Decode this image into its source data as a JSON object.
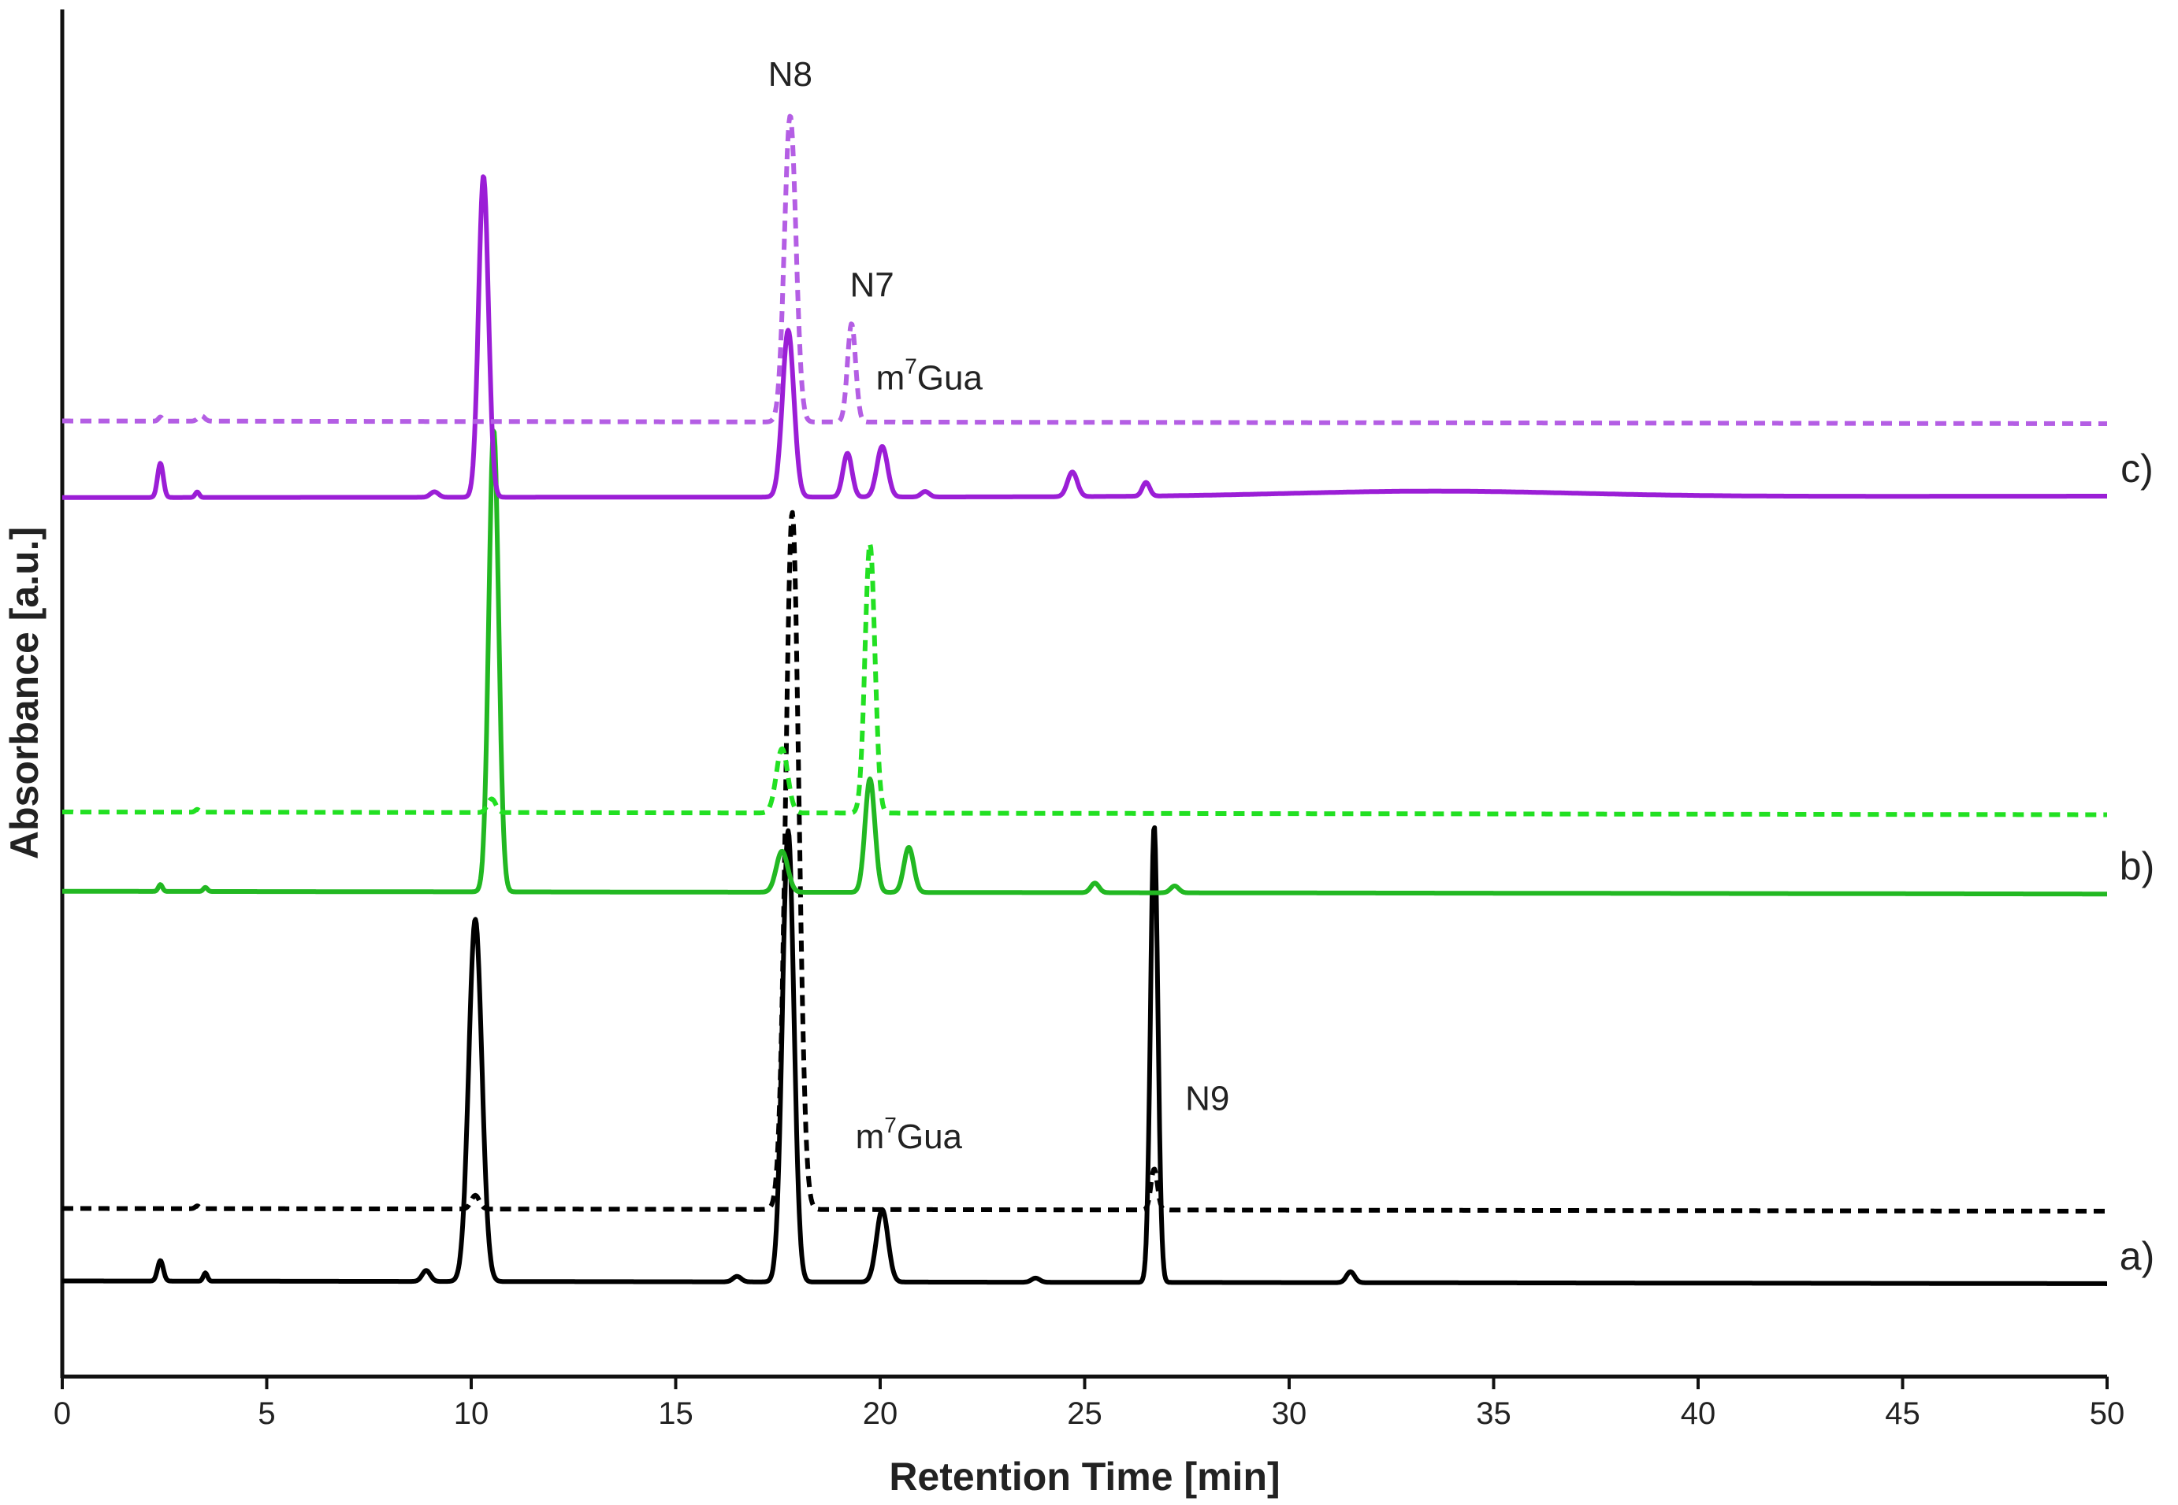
{
  "chart_data": {
    "type": "line",
    "title": "",
    "xlabel": "Retention Time [min]",
    "ylabel": "Absorbance [a.u.]",
    "xlim": [
      0,
      50
    ],
    "ylim": [
      0,
      1
    ],
    "xticks": [
      "0",
      "5",
      "10",
      "15",
      "20",
      "25",
      "30",
      "35",
      "40",
      "45",
      "50"
    ],
    "grid": false,
    "legend": "none",
    "series": [
      {
        "name": "a)",
        "color": "#000000",
        "style": "solid",
        "offset": 0.07,
        "drift": -0.002,
        "peaks": [
          [
            2.4,
            0.015,
            0.07
          ],
          [
            3.5,
            0.006,
            0.05
          ],
          [
            8.9,
            0.008,
            0.1
          ],
          [
            10.1,
            0.265,
            0.16
          ],
          [
            16.5,
            0.004,
            0.1
          ],
          [
            17.75,
            0.33,
            0.14
          ],
          [
            20.05,
            0.053,
            0.14
          ],
          [
            23.8,
            0.003,
            0.1
          ],
          [
            26.7,
            0.334,
            0.09
          ],
          [
            31.5,
            0.008,
            0.1
          ]
        ]
      },
      {
        "name": "a) dashed",
        "color": "#000000",
        "style": "dashed",
        "offset": 0.123,
        "drift": -0.002,
        "peaks": [
          [
            3.3,
            0.002,
            0.05
          ],
          [
            10.1,
            0.01,
            0.1
          ],
          [
            17.85,
            0.51,
            0.16
          ],
          [
            26.7,
            0.03,
            0.08
          ]
        ]
      },
      {
        "name": "b)",
        "color": "#22b822",
        "style": "solid",
        "offset": 0.355,
        "drift": -0.002,
        "peaks": [
          [
            2.4,
            0.005,
            0.05
          ],
          [
            3.5,
            0.003,
            0.05
          ],
          [
            10.55,
            0.338,
            0.12
          ],
          [
            17.6,
            0.03,
            0.14
          ],
          [
            19.75,
            0.083,
            0.12
          ],
          [
            20.7,
            0.033,
            0.12
          ],
          [
            25.25,
            0.007,
            0.1
          ],
          [
            27.2,
            0.005,
            0.1
          ]
        ]
      },
      {
        "name": "b) dashed",
        "color": "#22e022",
        "style": "dashed",
        "offset": 0.413,
        "drift": -0.002,
        "peaks": [
          [
            3.3,
            0.002,
            0.05
          ],
          [
            10.5,
            0.01,
            0.1
          ],
          [
            17.6,
            0.047,
            0.14
          ],
          [
            19.75,
            0.197,
            0.12
          ]
        ]
      },
      {
        "name": "c)",
        "color": "#9b1ed6",
        "style": "solid",
        "offset": 0.643,
        "drift": 0.001,
        "peaks": [
          [
            2.4,
            0.025,
            0.07
          ],
          [
            3.3,
            0.004,
            0.05
          ],
          [
            9.1,
            0.004,
            0.1
          ],
          [
            10.3,
            0.235,
            0.12
          ],
          [
            17.75,
            0.122,
            0.14
          ],
          [
            19.2,
            0.032,
            0.11
          ],
          [
            20.05,
            0.037,
            0.13
          ],
          [
            21.1,
            0.004,
            0.1
          ],
          [
            24.7,
            0.018,
            0.12
          ],
          [
            26.5,
            0.01,
            0.09
          ],
          [
            33.5,
            0.004,
            3.5
          ]
        ]
      },
      {
        "name": "c) dashed",
        "color": "#b45ee4",
        "style": "dashed",
        "offset": 0.699,
        "drift": -0.002,
        "peaks": [
          [
            2.4,
            0.003,
            0.05
          ],
          [
            3.4,
            0.004,
            0.08
          ],
          [
            17.8,
            0.224,
            0.14
          ],
          [
            19.3,
            0.072,
            0.1
          ]
        ]
      }
    ],
    "annotations": [
      {
        "text": "N8",
        "x": 17.8,
        "y": 0.944
      },
      {
        "text": "N7",
        "x": 19.8,
        "y": 0.79
      },
      {
        "text": "m",
        "sup": "7",
        "rest": "Gua",
        "x": 21.2,
        "y": 0.722
      },
      {
        "text": "m",
        "sup": "7",
        "rest": "Gua",
        "x": 20.7,
        "y": 0.167
      },
      {
        "text": "N9",
        "x": 28.0,
        "y": 0.195
      }
    ],
    "trace_labels": [
      {
        "text": "c)",
        "series": 4
      },
      {
        "text": "b)",
        "series": 2
      },
      {
        "text": "a)",
        "series": 0
      }
    ]
  }
}
